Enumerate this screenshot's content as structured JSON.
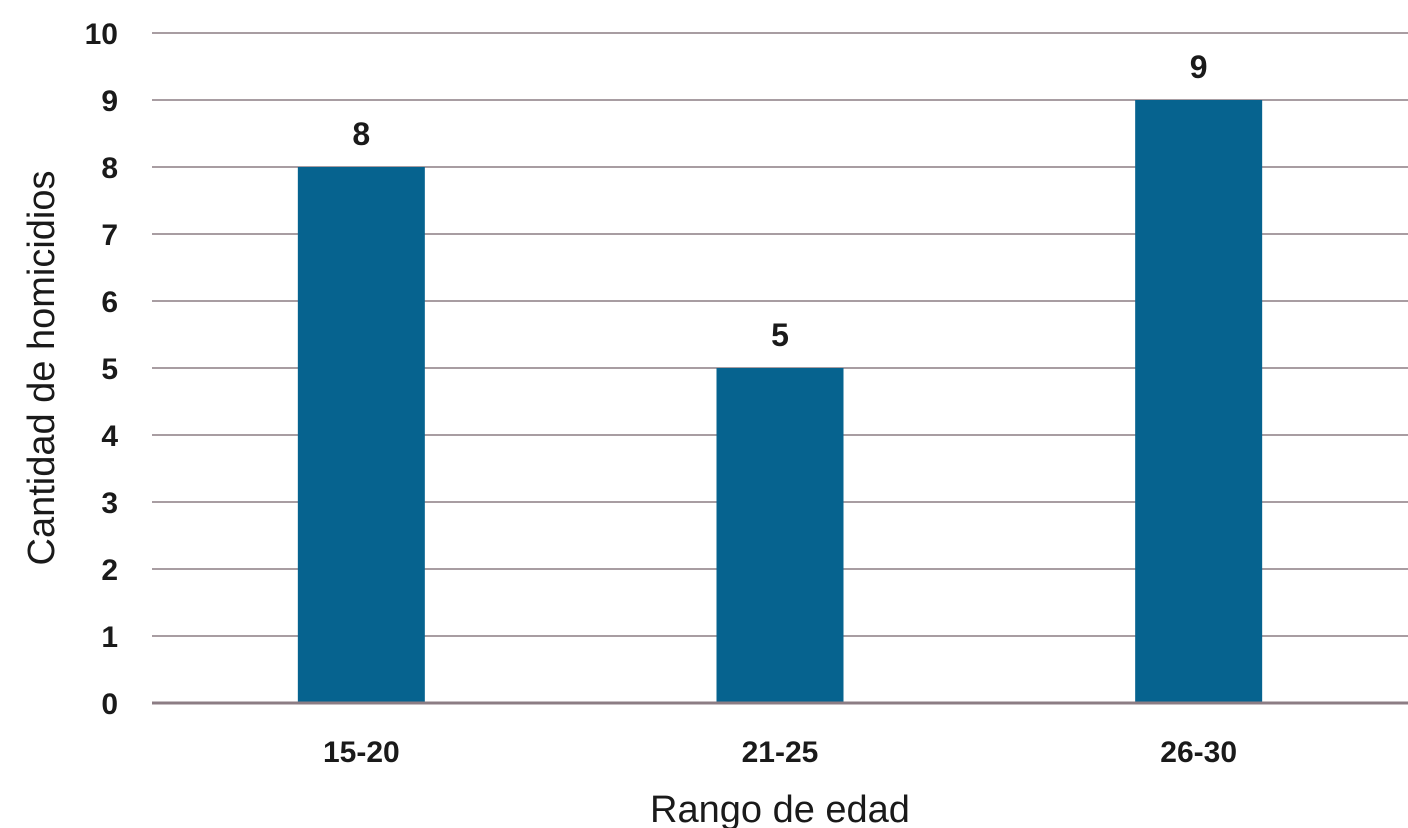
{
  "chart_data": {
    "type": "bar",
    "title": "",
    "xlabel": "Rango de edad",
    "ylabel": "Cantidad de homicidios",
    "categories": [
      "15-20",
      "21-25",
      "26-30"
    ],
    "values": [
      8,
      5,
      9
    ],
    "data_labels": [
      "8",
      "5",
      "9"
    ],
    "ylim": [
      0,
      10
    ],
    "yticks": [
      "0",
      "1",
      "2",
      "3",
      "4",
      "5",
      "6",
      "7",
      "8",
      "9",
      "10"
    ],
    "grid": true,
    "legend": "none",
    "bar_color": "#06638f",
    "grid_color": "#8c7d84"
  }
}
